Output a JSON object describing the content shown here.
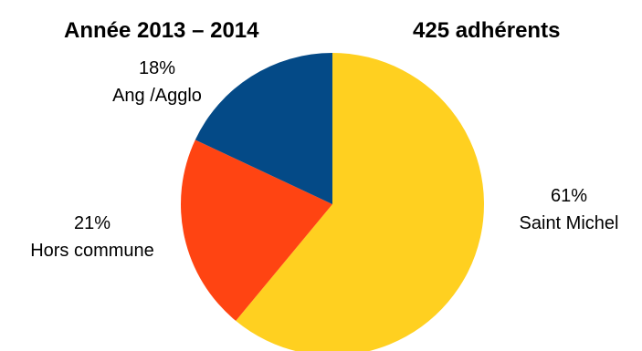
{
  "chart_data": {
    "type": "pie",
    "title": "Année 2013 – 2014",
    "subtitle": "425 adhérents",
    "slices": [
      {
        "label": "Saint Michel",
        "value": 61,
        "value_text": "61%",
        "color": "#FFD020"
      },
      {
        "label": "Hors commune",
        "value": 21,
        "value_text": "21%",
        "color": "#FF4412"
      },
      {
        "label": "Ang /Agglo",
        "value": 18,
        "value_text": "18%",
        "color": "#044A87"
      }
    ],
    "start": "top, clockwise"
  }
}
